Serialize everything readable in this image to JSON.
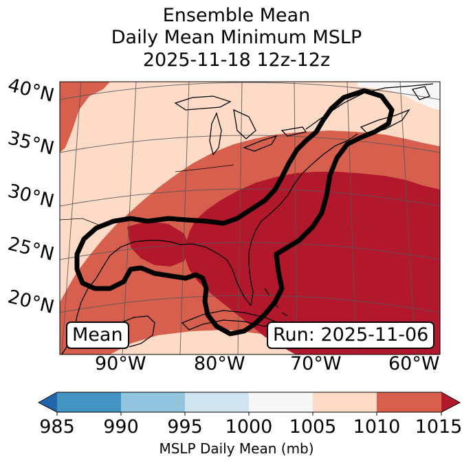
{
  "title": {
    "line1": "Ensemble Mean",
    "line2": "Daily Mean Minimum MSLP",
    "line3": "2025-11-18 12z-12z"
  },
  "map": {
    "lat_labels": [
      "40°N",
      "35°N",
      "30°N",
      "25°N",
      "20°N"
    ],
    "lon_labels": [
      "90°W",
      "80°W",
      "70°W",
      "60°W"
    ],
    "mean_label": "Mean",
    "run_label": "Run: 2025-11-06",
    "colors": {
      "c985": "#2166ac",
      "c990": "#4393c3",
      "c995": "#92c5de",
      "c1000": "#d1e5f0",
      "c1005": "#f7f7f7",
      "c1010": "#fddbc7",
      "c1015": "#d6604d",
      "c1020": "#b2182b",
      "contour": "#000000",
      "coast": "#000000",
      "grid": "#555555"
    }
  },
  "colorbar": {
    "ticks": [
      "985",
      "990",
      "995",
      "1000",
      "1005",
      "1010",
      "1015"
    ],
    "label": "MSLP Daily Mean (mb)"
  }
}
